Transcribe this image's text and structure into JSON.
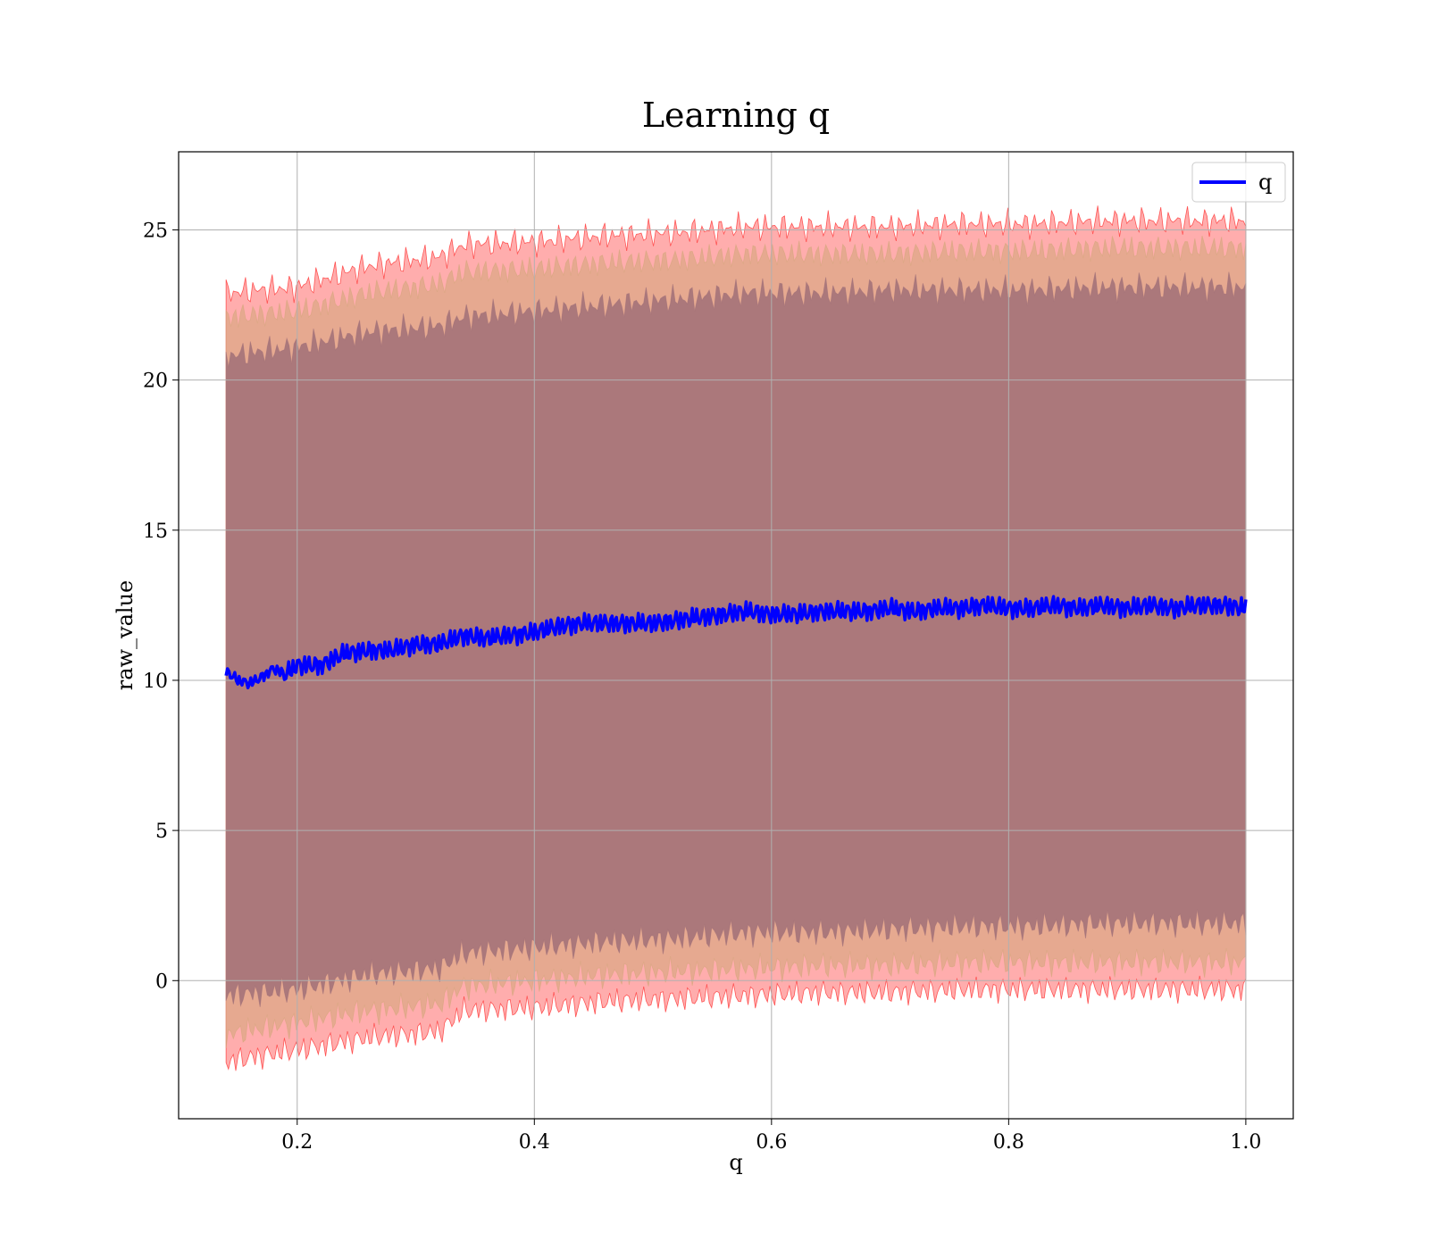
{
  "chart_data": {
    "type": "line",
    "title": "Learning q",
    "xlabel": "q",
    "ylabel": "raw_value",
    "xlim": [
      0.1,
      1.04
    ],
    "ylim": [
      -4.6,
      27.6
    ],
    "xticks": [
      0.2,
      0.4,
      0.6,
      0.8,
      1.0
    ],
    "xtick_labels": [
      "0.2",
      "0.4",
      "0.6",
      "0.8",
      "1.0"
    ],
    "yticks": [
      0,
      5,
      10,
      15,
      20,
      25
    ],
    "ytick_labels": [
      "0",
      "5",
      "10",
      "15",
      "20",
      "25"
    ],
    "grid": true,
    "legend": {
      "position": "top-right",
      "entries": [
        "q"
      ]
    },
    "x_range": [
      0.14,
      1.0
    ],
    "series": [
      {
        "name": "q",
        "color": "#0000ff",
        "x": [
          0.14,
          0.15,
          0.16,
          0.17,
          0.18,
          0.19,
          0.2,
          0.22,
          0.24,
          0.26,
          0.28,
          0.3,
          0.32,
          0.34,
          0.36,
          0.38,
          0.4,
          0.42,
          0.44,
          0.46,
          0.48,
          0.5,
          0.52,
          0.54,
          0.56,
          0.58,
          0.6,
          0.62,
          0.64,
          0.66,
          0.68,
          0.7,
          0.72,
          0.74,
          0.76,
          0.78,
          0.8,
          0.82,
          0.84,
          0.86,
          0.88,
          0.9,
          0.92,
          0.94,
          0.96,
          0.98,
          1.0
        ],
        "y": [
          10.3,
          10.0,
          9.9,
          10.1,
          10.4,
          10.2,
          10.5,
          10.5,
          10.9,
          11.0,
          11.0,
          11.2,
          11.2,
          11.5,
          11.4,
          11.5,
          11.6,
          11.8,
          11.9,
          11.9,
          11.9,
          11.9,
          12.0,
          12.1,
          12.2,
          12.3,
          12.2,
          12.2,
          12.3,
          12.3,
          12.3,
          12.4,
          12.3,
          12.4,
          12.4,
          12.5,
          12.4,
          12.4,
          12.5,
          12.4,
          12.5,
          12.4,
          12.5,
          12.4,
          12.5,
          12.5,
          12.4
        ]
      }
    ],
    "bands": [
      {
        "name": "outer band",
        "color": "#ff0000",
        "x": [
          0.14,
          0.2,
          0.26,
          0.32,
          0.34,
          0.4,
          0.46,
          0.52,
          0.58,
          0.64,
          0.7,
          0.76,
          0.82,
          0.88,
          0.94,
          1.0
        ],
        "lower": [
          -2.7,
          -2.3,
          -1.9,
          -1.7,
          -1.0,
          -0.9,
          -0.7,
          -0.6,
          -0.5,
          -0.4,
          -0.4,
          -0.3,
          -0.3,
          -0.3,
          -0.3,
          -0.3
        ],
        "upper": [
          22.9,
          23.1,
          23.8,
          24.1,
          24.5,
          24.6,
          24.8,
          24.9,
          25.1,
          25.1,
          25.1,
          25.2,
          25.2,
          25.3,
          25.3,
          25.3
        ]
      },
      {
        "name": "middle band",
        "color": "#d2a679",
        "x": [
          0.14,
          0.2,
          0.26,
          0.32,
          0.34,
          0.4,
          0.46,
          0.52,
          0.58,
          0.64,
          0.7,
          0.76,
          0.82,
          0.88,
          0.94,
          1.0
        ],
        "lower": [
          -1.8,
          -1.4,
          -1.0,
          -0.8,
          -0.2,
          0.0,
          0.2,
          0.3,
          0.4,
          0.5,
          0.5,
          0.6,
          0.6,
          0.6,
          0.6,
          0.6
        ],
        "upper": [
          22.1,
          22.3,
          22.9,
          23.2,
          23.6,
          23.7,
          23.9,
          24.0,
          24.2,
          24.2,
          24.2,
          24.3,
          24.3,
          24.4,
          24.4,
          24.4
        ]
      },
      {
        "name": "inner band",
        "color": "#a07078",
        "x": [
          0.14,
          0.2,
          0.26,
          0.32,
          0.34,
          0.4,
          0.46,
          0.52,
          0.58,
          0.64,
          0.7,
          0.76,
          0.82,
          0.88,
          0.94,
          1.0
        ],
        "lower": [
          -0.5,
          -0.3,
          0.2,
          0.4,
          0.9,
          1.1,
          1.3,
          1.4,
          1.6,
          1.6,
          1.7,
          1.8,
          1.8,
          1.9,
          1.9,
          1.9
        ],
        "upper": [
          20.8,
          21.1,
          21.6,
          21.8,
          22.1,
          22.3,
          22.5,
          22.7,
          22.9,
          22.9,
          23.0,
          23.0,
          23.0,
          23.1,
          23.1,
          23.1
        ]
      }
    ]
  }
}
